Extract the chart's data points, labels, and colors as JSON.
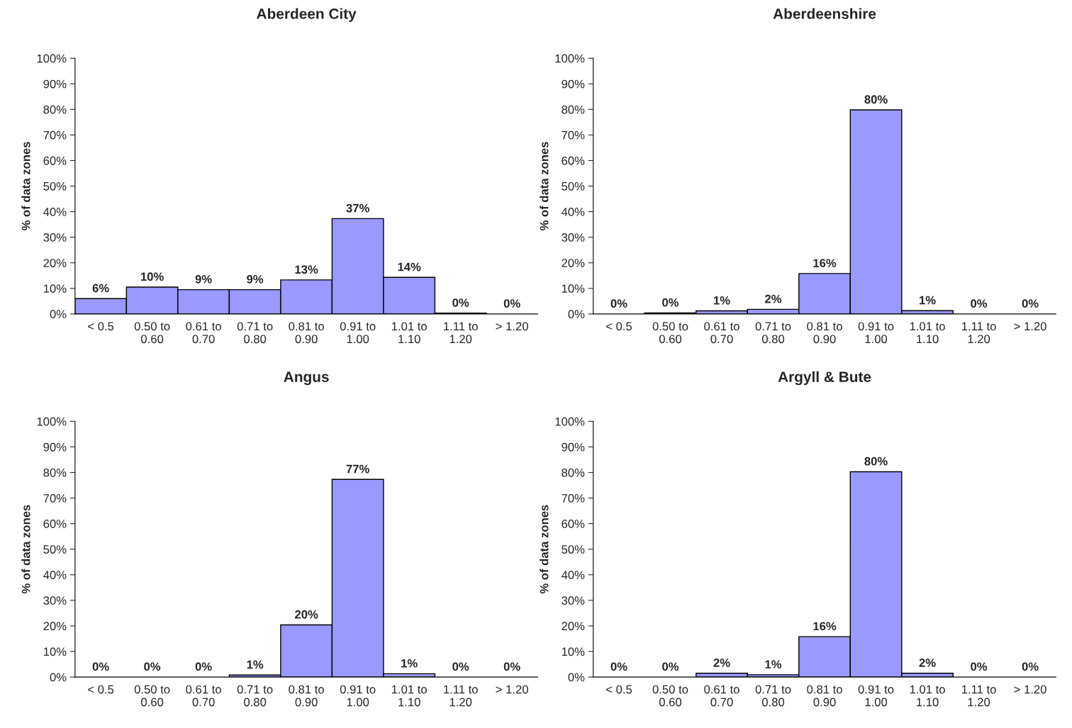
{
  "chart_data": [
    {
      "type": "bar",
      "title": "Aberdeen City",
      "ylabel": "% of data zones",
      "categories": [
        "< 0.5",
        "0.50 to 0.60",
        "0.61 to 0.70",
        "0.71 to 0.80",
        "0.81 to 0.90",
        "0.91 to 1.00",
        "1.01 to 1.10",
        "1.11 to 1.20",
        "> 1.20"
      ],
      "values": [
        6,
        10.5,
        9.5,
        9.5,
        13.3,
        37.3,
        14.3,
        0.3,
        0
      ],
      "value_labels": [
        "6%",
        "10%",
        "9%",
        "9%",
        "13%",
        "37%",
        "14%",
        "0%",
        "0%"
      ],
      "color": "#9999ff",
      "ylim": [
        0,
        100
      ],
      "yticks": [
        {
          "value": 0,
          "label": "0%"
        },
        {
          "value": 10,
          "label": "10%"
        },
        {
          "value": 20,
          "label": "20%"
        },
        {
          "value": 30,
          "label": "30%"
        },
        {
          "value": 40,
          "label": "40%"
        },
        {
          "value": 50,
          "label": "50%"
        },
        {
          "value": 60,
          "label": "60%"
        },
        {
          "value": 70,
          "label": "70%"
        },
        {
          "value": 80,
          "label": "80%"
        },
        {
          "value": 90,
          "label": "90%"
        },
        {
          "value": 100,
          "label": "100%"
        }
      ],
      "grid": false,
      "legend": false
    },
    {
      "type": "bar",
      "title": "Aberdeenshire",
      "ylabel": "% of data zones",
      "categories": [
        "< 0.5",
        "0.50 to 0.60",
        "0.61 to 0.70",
        "0.71 to 0.80",
        "0.81 to 0.90",
        "0.91 to 1.00",
        "1.01 to 1.10",
        "1.11 to 1.20",
        "> 1.20"
      ],
      "values": [
        0,
        0.4,
        1.2,
        1.8,
        15.8,
        79.8,
        1.3,
        0,
        0
      ],
      "value_labels": [
        "0%",
        "0%",
        "1%",
        "2%",
        "16%",
        "80%",
        "1%",
        "0%",
        "0%"
      ],
      "color": "#9999ff",
      "ylim": [
        0,
        100
      ],
      "yticks": [
        {
          "value": 0,
          "label": "0%"
        },
        {
          "value": 10,
          "label": "10%"
        },
        {
          "value": 20,
          "label": "20%"
        },
        {
          "value": 30,
          "label": "30%"
        },
        {
          "value": 40,
          "label": "40%"
        },
        {
          "value": 50,
          "label": "50%"
        },
        {
          "value": 60,
          "label": "60%"
        },
        {
          "value": 70,
          "label": "70%"
        },
        {
          "value": 80,
          "label": "80%"
        },
        {
          "value": 90,
          "label": "90%"
        },
        {
          "value": 100,
          "label": "100%"
        }
      ],
      "grid": false,
      "legend": false
    },
    {
      "type": "bar",
      "title": "Angus",
      "ylabel": "% of data zones",
      "categories": [
        "< 0.5",
        "0.50 to 0.60",
        "0.61 to 0.70",
        "0.71 to 0.80",
        "0.81 to 0.90",
        "0.91 to 1.00",
        "1.01 to 1.10",
        "1.11 to 1.20",
        "> 1.20"
      ],
      "values": [
        0,
        0,
        0,
        0.8,
        20.4,
        77.3,
        1.3,
        0,
        0
      ],
      "value_labels": [
        "0%",
        "0%",
        "0%",
        "1%",
        "20%",
        "77%",
        "1%",
        "0%",
        "0%"
      ],
      "color": "#9999ff",
      "ylim": [
        0,
        100
      ],
      "yticks": [
        {
          "value": 0,
          "label": "0%"
        },
        {
          "value": 10,
          "label": "10%"
        },
        {
          "value": 20,
          "label": "20%"
        },
        {
          "value": 30,
          "label": "30%"
        },
        {
          "value": 40,
          "label": "40%"
        },
        {
          "value": 50,
          "label": "50%"
        },
        {
          "value": 60,
          "label": "60%"
        },
        {
          "value": 70,
          "label": "70%"
        },
        {
          "value": 80,
          "label": "80%"
        },
        {
          "value": 90,
          "label": "90%"
        },
        {
          "value": 100,
          "label": "100%"
        }
      ],
      "grid": false,
      "legend": false
    },
    {
      "type": "bar",
      "title": "Argyll & Bute",
      "ylabel": "% of data zones",
      "categories": [
        "< 0.5",
        "0.50 to 0.60",
        "0.61 to 0.70",
        "0.71 to 0.80",
        "0.81 to 0.90",
        "0.91 to 1.00",
        "1.01 to 1.10",
        "1.11 to 1.20",
        "> 1.20"
      ],
      "values": [
        0,
        0,
        1.5,
        0.9,
        15.8,
        80.3,
        1.5,
        0,
        0
      ],
      "value_labels": [
        "0%",
        "0%",
        "2%",
        "1%",
        "16%",
        "80%",
        "2%",
        "0%",
        "0%"
      ],
      "color": "#9999ff",
      "ylim": [
        0,
        100
      ],
      "yticks": [
        {
          "value": 0,
          "label": "0%"
        },
        {
          "value": 10,
          "label": "10%"
        },
        {
          "value": 20,
          "label": "20%"
        },
        {
          "value": 30,
          "label": "30%"
        },
        {
          "value": 40,
          "label": "40%"
        },
        {
          "value": 50,
          "label": "50%"
        },
        {
          "value": 60,
          "label": "60%"
        },
        {
          "value": 70,
          "label": "70%"
        },
        {
          "value": 80,
          "label": "80%"
        },
        {
          "value": 90,
          "label": "90%"
        },
        {
          "value": 100,
          "label": "100%"
        }
      ],
      "grid": false,
      "legend": false
    }
  ]
}
